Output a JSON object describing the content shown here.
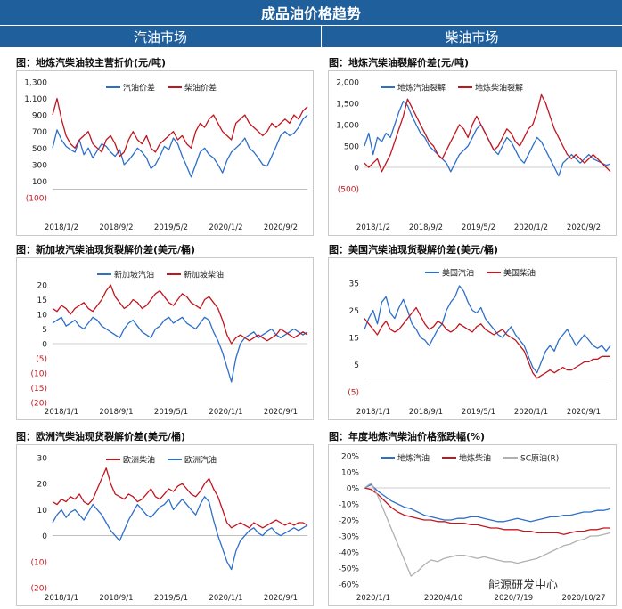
{
  "header": {
    "title": "成品油价格趋势",
    "left_section": "汽油市场",
    "right_section": "柴油市场"
  },
  "watermark": "能源研发中心",
  "colors": {
    "header_bg": "#1f5f9b",
    "blue": "#2e6fc9",
    "red": "#c0171f",
    "gray": "#b0b0b0",
    "neg_label": "#c0171f"
  },
  "chart_data": [
    {
      "id": "c1",
      "type": "line",
      "title": "图：地炼汽柴油较主营折价(元/吨)",
      "ylim": [
        -100,
        1300
      ],
      "yticks": [
        "1,300",
        "1,100",
        "900",
        "700",
        "500",
        "300",
        "100",
        "(100)"
      ],
      "xticks": [
        "2018/1/2",
        "2018/9/2",
        "2019/5/2",
        "2020/1/2",
        "2020/9/2"
      ],
      "x_range": [
        "2018/1/2",
        "2021/3/20"
      ],
      "series": [
        {
          "name": "汽油价差",
          "color": "#2e6fc9",
          "values": [
            500,
            720,
            600,
            520,
            480,
            450,
            600,
            420,
            500,
            380,
            470,
            550,
            520,
            450,
            400,
            480,
            300,
            350,
            420,
            500,
            450,
            380,
            250,
            300,
            400,
            520,
            480,
            620,
            550,
            400,
            280,
            150,
            300,
            450,
            500,
            420,
            380,
            300,
            200,
            350,
            450,
            500,
            550,
            620,
            500,
            450,
            380,
            300,
            280,
            400,
            520,
            650,
            700,
            650,
            680,
            750,
            850,
            900
          ]
        },
        {
          "name": "柴油价差",
          "color": "#c0171f",
          "values": [
            900,
            1100,
            850,
            650,
            550,
            500,
            600,
            650,
            700,
            550,
            500,
            450,
            600,
            650,
            550,
            400,
            450,
            600,
            700,
            600,
            550,
            650,
            500,
            450,
            550,
            600,
            650,
            700,
            600,
            650,
            550,
            500,
            700,
            800,
            750,
            850,
            900,
            800,
            700,
            650,
            600,
            800,
            850,
            900,
            800,
            750,
            700,
            650,
            700,
            800,
            750,
            800,
            850,
            800,
            900,
            850,
            950,
            1000
          ]
        }
      ]
    },
    {
      "id": "c2",
      "type": "line",
      "title": "图：地炼汽柴油裂解价差(元/吨)",
      "ylim": [
        -500,
        2000
      ],
      "yticks": [
        "2,000",
        "1,500",
        "1,000",
        "500",
        "0",
        "(500)"
      ],
      "xticks": [
        "2018/1/2",
        "2018/9/2",
        "2019/5/2",
        "2020/1/2",
        "2020/9/2"
      ],
      "x_range": [
        "2018/1/2",
        "2021/3/20"
      ],
      "series": [
        {
          "name": "地炼汽油裂解",
          "color": "#2e6fc9",
          "values": [
            500,
            800,
            300,
            700,
            600,
            800,
            700,
            1000,
            1300,
            1550,
            1450,
            1200,
            1000,
            800,
            700,
            500,
            400,
            300,
            200,
            100,
            -100,
            100,
            300,
            400,
            500,
            700,
            900,
            1000,
            800,
            600,
            400,
            300,
            500,
            700,
            600,
            400,
            200,
            100,
            300,
            500,
            700,
            600,
            400,
            200,
            0,
            -200,
            100,
            200,
            300,
            200,
            100,
            200,
            300,
            200,
            150,
            100,
            50,
            80
          ]
        },
        {
          "name": "地炼柴油裂解",
          "color": "#c0171f",
          "values": [
            100,
            0,
            100,
            200,
            -100,
            100,
            300,
            600,
            900,
            1200,
            1600,
            1400,
            1200,
            1000,
            800,
            600,
            500,
            300,
            200,
            400,
            600,
            800,
            1000,
            900,
            700,
            1000,
            1200,
            1000,
            800,
            600,
            400,
            500,
            700,
            900,
            800,
            600,
            500,
            700,
            900,
            1000,
            1300,
            1700,
            1500,
            1200,
            900,
            700,
            500,
            300,
            200,
            300,
            200,
            100,
            200,
            300,
            200,
            100,
            0,
            -100
          ]
        }
      ]
    },
    {
      "id": "c3",
      "type": "line",
      "title": "图：新加坡汽柴油现货裂解价差(美元/桶)",
      "ylim": [
        -20,
        20
      ],
      "yticks": [
        "20",
        "15",
        "10",
        "5",
        "0",
        "(5)",
        "(10)",
        "(15)",
        "(20)"
      ],
      "xticks": [
        "2018/1/1",
        "2018/9/1",
        "2019/5/1",
        "2020/1/1",
        "2020/9/1"
      ],
      "x_range": [
        "2018/1/1",
        "2021/3/20"
      ],
      "series": [
        {
          "name": "新加坡汽油",
          "color": "#2e6fc9",
          "values": [
            7,
            8,
            9,
            6,
            7,
            8,
            6,
            5,
            7,
            9,
            8,
            6,
            5,
            4,
            3,
            2,
            5,
            7,
            8,
            6,
            4,
            3,
            2,
            5,
            6,
            8,
            9,
            7,
            8,
            9,
            7,
            6,
            5,
            7,
            9,
            8,
            4,
            1,
            -3,
            -8,
            -13,
            -5,
            0,
            2,
            3,
            4,
            2,
            3,
            4,
            5,
            3,
            2,
            3,
            4,
            5,
            4,
            3,
            4
          ]
        },
        {
          "name": "新加坡柴油",
          "color": "#c0171f",
          "values": [
            12,
            11,
            13,
            12,
            10,
            12,
            13,
            14,
            12,
            11,
            13,
            15,
            18,
            20,
            16,
            14,
            12,
            13,
            15,
            14,
            12,
            13,
            15,
            17,
            18,
            16,
            14,
            13,
            15,
            17,
            16,
            14,
            13,
            12,
            15,
            16,
            14,
            12,
            8,
            3,
            0,
            2,
            3,
            2,
            1,
            2,
            3,
            2,
            1,
            2,
            3,
            5,
            4,
            3,
            2,
            3,
            4,
            3
          ]
        }
      ]
    },
    {
      "id": "c4",
      "type": "line",
      "title": "图：美国汽柴油现货裂解价差(美元/桶)",
      "ylim": [
        -5,
        35
      ],
      "yticks": [
        "35",
        "25",
        "15",
        "5",
        "(5)"
      ],
      "xticks": [
        "2018/1/1",
        "2018/9/1",
        "2019/5/1",
        "2020/1/1",
        "2020/9/1"
      ],
      "x_range": [
        "2018/1/1",
        "2021/3/20"
      ],
      "series": [
        {
          "name": "美国汽油",
          "color": "#2e6fc9",
          "values": [
            18,
            22,
            25,
            20,
            28,
            30,
            24,
            22,
            26,
            29,
            25,
            20,
            18,
            15,
            14,
            12,
            15,
            18,
            20,
            25,
            28,
            30,
            34,
            32,
            28,
            25,
            24,
            26,
            22,
            20,
            18,
            16,
            15,
            17,
            19,
            16,
            14,
            12,
            8,
            4,
            2,
            6,
            10,
            12,
            10,
            14,
            16,
            18,
            15,
            12,
            14,
            16,
            14,
            12,
            11,
            12,
            10,
            12
          ]
        },
        {
          "name": "美国柴油",
          "color": "#c0171f",
          "values": [
            22,
            20,
            18,
            16,
            19,
            21,
            18,
            17,
            18,
            20,
            22,
            24,
            26,
            23,
            20,
            18,
            19,
            21,
            20,
            18,
            17,
            18,
            20,
            19,
            18,
            17,
            19,
            20,
            18,
            17,
            16,
            17,
            18,
            16,
            15,
            14,
            12,
            10,
            6,
            2,
            0,
            1,
            2,
            3,
            2,
            3,
            4,
            3,
            3,
            4,
            5,
            6,
            6,
            7,
            7,
            8,
            8,
            8
          ]
        }
      ]
    },
    {
      "id": "c5",
      "type": "line",
      "title": "图：欧洲汽柴油现货裂解价差(美元/桶)",
      "ylim": [
        -20,
        30
      ],
      "yticks": [
        "30",
        "20",
        "10",
        "0",
        "(10)",
        "(20)"
      ],
      "xticks": [
        "2018/1/1",
        "2018/9/1",
        "2019/5/1",
        "2020/1/1",
        "2020/9/1"
      ],
      "x_range": [
        "2018/1/1",
        "2021/3/20"
      ],
      "series": [
        {
          "name": "欧洲柴油",
          "color": "#c0171f",
          "values": [
            13,
            12,
            14,
            13,
            15,
            14,
            16,
            13,
            12,
            14,
            18,
            22,
            26,
            20,
            16,
            15,
            14,
            16,
            15,
            13,
            14,
            16,
            18,
            15,
            14,
            16,
            18,
            17,
            19,
            20,
            18,
            16,
            15,
            17,
            20,
            22,
            18,
            15,
            10,
            5,
            3,
            4,
            5,
            4,
            3,
            5,
            4,
            3,
            4,
            5,
            6,
            5,
            4,
            5,
            4,
            5,
            5,
            4
          ]
        },
        {
          "name": "欧洲汽油",
          "color": "#2e6fc9",
          "values": [
            5,
            8,
            10,
            7,
            9,
            10,
            8,
            6,
            9,
            12,
            10,
            8,
            5,
            2,
            0,
            -2,
            2,
            6,
            9,
            12,
            10,
            8,
            7,
            9,
            11,
            12,
            14,
            10,
            12,
            14,
            12,
            10,
            8,
            12,
            15,
            13,
            6,
            0,
            -5,
            -10,
            -13,
            -6,
            -2,
            0,
            2,
            3,
            1,
            0,
            2,
            3,
            1,
            0,
            1,
            2,
            3,
            2,
            3,
            4
          ]
        }
      ]
    },
    {
      "id": "c6",
      "type": "line",
      "title": "图：年度地炼汽柴油价格涨跌幅(%)",
      "ylim": [
        -60,
        20
      ],
      "yticks": [
        "20%",
        "10%",
        "0%",
        "-10%",
        "-20%",
        "-30%",
        "-40%",
        "-50%",
        "-60%"
      ],
      "xticks": [
        "2020/1/1",
        "2020/4/10",
        "2020/7/19",
        "2020/10/27"
      ],
      "x_range": [
        "2020/1/1",
        "2021/3/15"
      ],
      "series": [
        {
          "name": "地炼汽油",
          "color": "#2e6fc9",
          "values": [
            0,
            2,
            -2,
            -5,
            -8,
            -10,
            -12,
            -13,
            -15,
            -17,
            -18,
            -19,
            -20,
            -20,
            -19,
            -19,
            -18,
            -18,
            -19,
            -20,
            -21,
            -21,
            -20,
            -19,
            -20,
            -21,
            -20,
            -19,
            -18,
            -18,
            -17,
            -17,
            -16,
            -15,
            -15,
            -14,
            -14,
            -13
          ]
        },
        {
          "name": "地炼柴油",
          "color": "#c0171f",
          "values": [
            0,
            -1,
            -4,
            -8,
            -12,
            -15,
            -17,
            -18,
            -19,
            -20,
            -20,
            -21,
            -21,
            -22,
            -22,
            -22,
            -23,
            -23,
            -24,
            -25,
            -25,
            -26,
            -26,
            -26,
            -27,
            -27,
            -28,
            -28,
            -28,
            -28,
            -29,
            -28,
            -27,
            -27,
            -26,
            -26,
            -25,
            -25
          ]
        },
        {
          "name": "SC原油(R)",
          "color": "#b0b0b0",
          "values": [
            0,
            3,
            -5,
            -15,
            -25,
            -35,
            -45,
            -55,
            -52,
            -48,
            -45,
            -46,
            -44,
            -43,
            -42,
            -42,
            -43,
            -44,
            -43,
            -44,
            -45,
            -46,
            -46,
            -47,
            -46,
            -45,
            -44,
            -42,
            -40,
            -38,
            -36,
            -35,
            -33,
            -32,
            -30,
            -30,
            -29,
            -28
          ]
        }
      ]
    }
  ]
}
